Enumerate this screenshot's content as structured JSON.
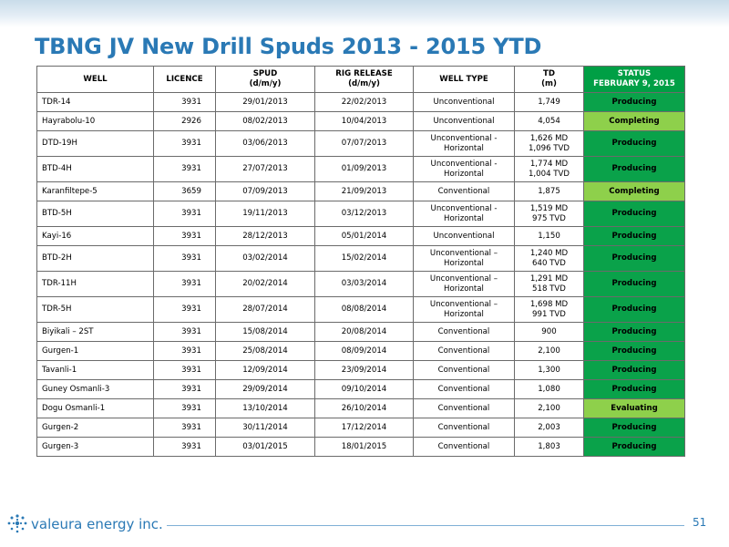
{
  "slide": {
    "title": "TBNG JV New Drill Spuds 2013 - 2015 YTD",
    "page_number": "51"
  },
  "logo": {
    "text": "valeura energy inc."
  },
  "table": {
    "headers": {
      "well": "WELL",
      "licence": "LICENCE",
      "spud_1": "SPUD",
      "spud_2": "(d/m/y)",
      "rig_1": "RIG RELEASE",
      "rig_2": "(d/m/y)",
      "well_type": "WELL TYPE",
      "td_1": "TD",
      "td_2": "(m)",
      "status_1": "STATUS",
      "status_2": "FEBRUARY 9, 2015"
    },
    "rows": [
      {
        "well": "TDR-14",
        "licence": "3931",
        "spud": "29/01/2013",
        "rig": "22/02/2013",
        "type_1": "Unconventional",
        "type_2": "",
        "td_1": "1,749",
        "td_2": "",
        "status": "Producing",
        "status_kind": "producing"
      },
      {
        "well": "Hayrabolu-10",
        "licence": "2926",
        "spud": "08/02/2013",
        "rig": "10/04/2013",
        "type_1": "Unconventional",
        "type_2": "",
        "td_1": "4,054",
        "td_2": "",
        "status": "Completing",
        "status_kind": "completing"
      },
      {
        "well": "DTD-19H",
        "licence": "3931",
        "spud": "03/06/2013",
        "rig": "07/07/2013",
        "type_1": "Unconventional -",
        "type_2": "Horizontal",
        "td_1": "1,626 MD",
        "td_2": "1,096 TVD",
        "status": "Producing",
        "status_kind": "producing"
      },
      {
        "well": "BTD-4H",
        "licence": "3931",
        "spud": "27/07/2013",
        "rig": "01/09/2013",
        "type_1": "Unconventional -",
        "type_2": "Horizontal",
        "td_1": "1,774 MD",
        "td_2": "1,004 TVD",
        "status": "Producing",
        "status_kind": "producing"
      },
      {
        "well": "Karanfiltepe-5",
        "licence": "3659",
        "spud": "07/09/2013",
        "rig": "21/09/2013",
        "type_1": "Conventional",
        "type_2": "",
        "td_1": "1,875",
        "td_2": "",
        "status": "Completing",
        "status_kind": "completing"
      },
      {
        "well": "BTD-5H",
        "licence": "3931",
        "spud": "19/11/2013",
        "rig": "03/12/2013",
        "type_1": "Unconventional -",
        "type_2": "Horizontal",
        "td_1": "1,519 MD",
        "td_2": "975 TVD",
        "status": "Producing",
        "status_kind": "producing"
      },
      {
        "well": "Kayi-16",
        "licence": "3931",
        "spud": "28/12/2013",
        "rig": "05/01/2014",
        "type_1": "Unconventional",
        "type_2": "",
        "td_1": "1,150",
        "td_2": "",
        "status": "Producing",
        "status_kind": "producing"
      },
      {
        "well": "BTD-2H",
        "licence": "3931",
        "spud": "03/02/2014",
        "rig": "15/02/2014",
        "type_1": "Unconventional –",
        "type_2": "Horizontal",
        "td_1": "1,240 MD",
        "td_2": "640 TVD",
        "status": "Producing",
        "status_kind": "producing"
      },
      {
        "well": "TDR-11H",
        "licence": "3931",
        "spud": "20/02/2014",
        "rig": "03/03/2014",
        "type_1": "Unconventional –",
        "type_2": "Horizontal",
        "td_1": "1,291 MD",
        "td_2": "518 TVD",
        "status": "Producing",
        "status_kind": "producing"
      },
      {
        "well": "TDR-5H",
        "licence": "3931",
        "spud": "28/07/2014",
        "rig": "08/08/2014",
        "type_1": "Unconventional –",
        "type_2": "Horizontal",
        "td_1": "1,698 MD",
        "td_2": "991 TVD",
        "status": "Producing",
        "status_kind": "producing"
      },
      {
        "well": "Biyikali – 2ST",
        "licence": "3931",
        "spud": "15/08/2014",
        "rig": "20/08/2014",
        "type_1": "Conventional",
        "type_2": "",
        "td_1": "900",
        "td_2": "",
        "status": "Producing",
        "status_kind": "producing"
      },
      {
        "well": "Gurgen-1",
        "licence": "3931",
        "spud": "25/08/2014",
        "rig": "08/09/2014",
        "type_1": "Conventional",
        "type_2": "",
        "td_1": "2,100",
        "td_2": "",
        "status": "Producing",
        "status_kind": "producing"
      },
      {
        "well": "Tavanli-1",
        "licence": "3931",
        "spud": "12/09/2014",
        "rig": "23/09/2014",
        "type_1": "Conventional",
        "type_2": "",
        "td_1": "1,300",
        "td_2": "",
        "status": "Producing",
        "status_kind": "producing"
      },
      {
        "well": "Guney Osmanli-3",
        "licence": "3931",
        "spud": "29/09/2014",
        "rig": "09/10/2014",
        "type_1": "Conventional",
        "type_2": "",
        "td_1": "1,080",
        "td_2": "",
        "status": "Producing",
        "status_kind": "producing"
      },
      {
        "well": "Dogu Osmanli-1",
        "licence": "3931",
        "spud": "13/10/2014",
        "rig": "26/10/2014",
        "type_1": "Conventional",
        "type_2": "",
        "td_1": "2,100",
        "td_2": "",
        "status": "Evaluating",
        "status_kind": "evaluating"
      },
      {
        "well": "Gurgen-2",
        "licence": "3931",
        "spud": "30/11/2014",
        "rig": "17/12/2014",
        "type_1": "Conventional",
        "type_2": "",
        "td_1": "2,003",
        "td_2": "",
        "status": "Producing",
        "status_kind": "producing"
      },
      {
        "well": "Gurgen-3",
        "licence": "3931",
        "spud": "03/01/2015",
        "rig": "18/01/2015",
        "type_1": "Conventional",
        "type_2": "",
        "td_1": "1,803",
        "td_2": "",
        "status": "Producing",
        "status_kind": "producing"
      }
    ]
  },
  "colors": {
    "title_blue": "#2a79b5",
    "producing_green": "#0aa24a",
    "completing_green": "#8ed04b",
    "header_status_green": "#009f45"
  }
}
